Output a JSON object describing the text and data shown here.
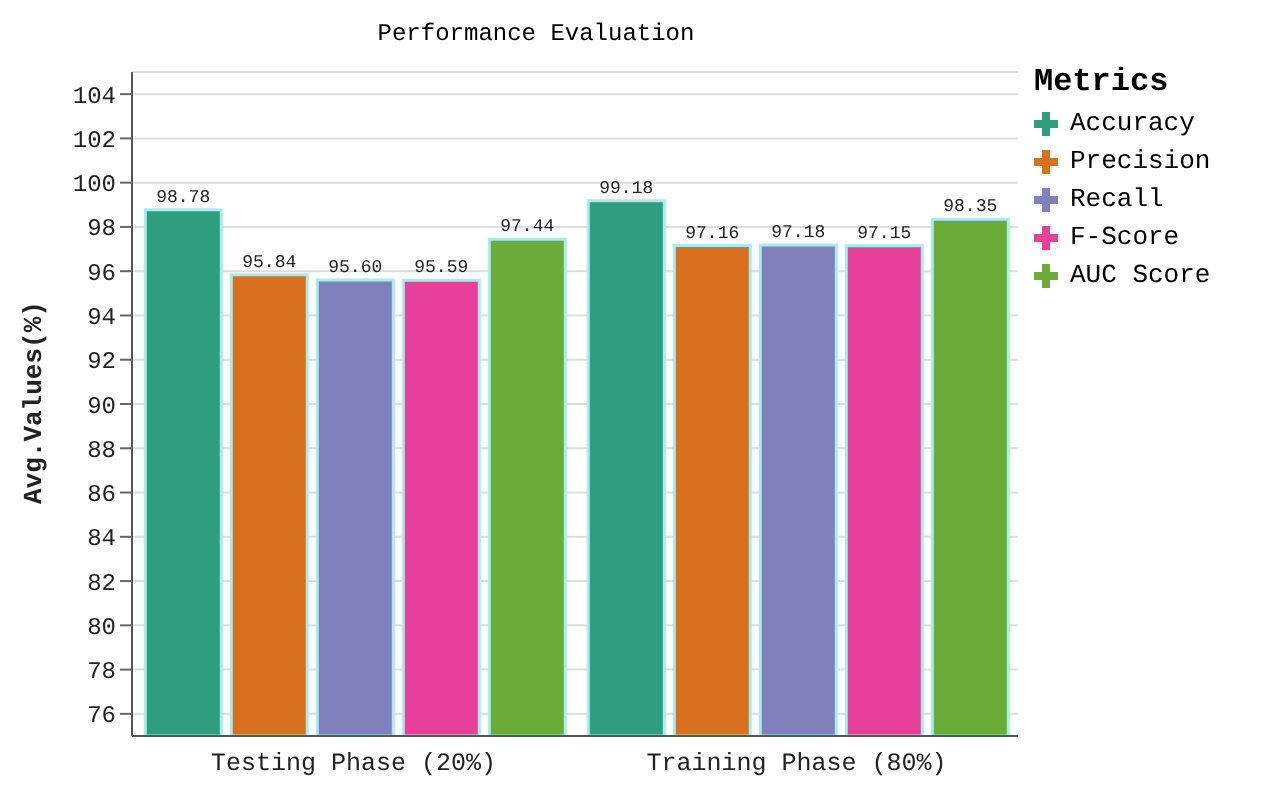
{
  "chart_data": {
    "type": "bar",
    "title": "Performance Evaluation",
    "ylabel": "Avg.Values(%)",
    "categories": [
      "Testing Phase (20%)",
      "Training Phase (80%)"
    ],
    "series": [
      {
        "name": "Accuracy",
        "color": "#2e9e7e",
        "values": [
          98.78,
          99.18
        ],
        "value_labels": [
          "98.78",
          "99.18"
        ]
      },
      {
        "name": "Precision",
        "color": "#d9701f",
        "values": [
          95.84,
          97.16
        ],
        "value_labels": [
          "95.84",
          "97.16"
        ]
      },
      {
        "name": "Recall",
        "color": "#8080bd",
        "values": [
          95.6,
          97.18
        ],
        "value_labels": [
          "95.60",
          "97.18"
        ]
      },
      {
        "name": "F-Score",
        "color": "#e6409a",
        "values": [
          95.59,
          97.15
        ],
        "value_labels": [
          "95.59",
          "97.15"
        ]
      },
      {
        "name": "AUC Score",
        "color": "#6aab3a",
        "values": [
          97.44,
          98.35
        ],
        "value_labels": [
          "97.44",
          "98.35"
        ]
      }
    ],
    "ylim": [
      75,
      105
    ],
    "yticks": [
      76,
      78,
      80,
      82,
      84,
      86,
      88,
      90,
      92,
      94,
      96,
      98,
      100,
      102,
      104
    ],
    "grid": "y",
    "legend": "right",
    "legend_title": "Metrics"
  }
}
